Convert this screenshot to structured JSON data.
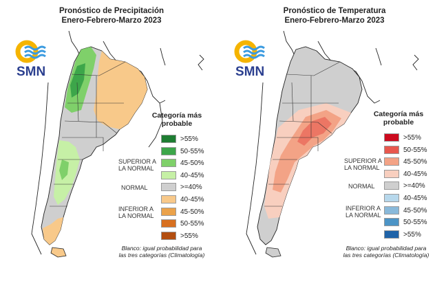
{
  "colors": {
    "precip_superior": [
      "#1e7d32",
      "#3da64a",
      "#7fd06a",
      "#c6f0a6"
    ],
    "precip_inferior": [
      "#f8c98a",
      "#eba24a",
      "#d87020",
      "#b34e10"
    ],
    "temp_superior": [
      "#cc0a1e",
      "#e8584e",
      "#f3a386",
      "#f8cfbf"
    ],
    "temp_inferior": [
      "#b7d8ec",
      "#89b9da",
      "#4c94c6",
      "#1f63a8"
    ],
    "normal": "#cfcfcf"
  },
  "panels": [
    {
      "id": "precipitation",
      "title_line1": "Pronóstico de Precipitación",
      "title_line2": "Enero-Febrero-Marzo 2023",
      "logo_text": "SMN",
      "legend_title_line1": "Categoría más",
      "legend_title_line2": "probable",
      "legend": [
        {
          "label": ">55%",
          "color": "#1e7d32"
        },
        {
          "label": "50-55%",
          "color": "#3da64a"
        },
        {
          "label": "45-50%",
          "color": "#7fd06a"
        },
        {
          "label": "40-45%",
          "color": "#c6f0a6"
        },
        {
          "label": ">=40%",
          "color": "#cfcfcf"
        },
        {
          "label": "40-45%",
          "color": "#f8c98a"
        },
        {
          "label": "45-50%",
          "color": "#eba24a"
        },
        {
          "label": "50-55%",
          "color": "#d87020"
        },
        {
          "label": ">55%",
          "color": "#b34e10"
        }
      ],
      "groups": {
        "superior_line1": "SUPERIOR A",
        "superior_line2": "LA NORMAL",
        "normal": "NORMAL",
        "inferior_line1": "INFERIOR A",
        "inferior_line2": "LA NORMAL"
      },
      "note_line1": "Blanco: igual probabilidad para",
      "note_line2": "las tres categorías (Climatología)"
    },
    {
      "id": "temperature",
      "title_line1": "Pronóstico de Temperatura",
      "title_line2": "Enero-Febrero-Marzo 2023",
      "logo_text": "SMN",
      "legend_title_line1": "Categoría más",
      "legend_title_line2": "probable",
      "legend": [
        {
          "label": ">55%",
          "color": "#cc0a1e"
        },
        {
          "label": "50-55%",
          "color": "#e8584e"
        },
        {
          "label": "45-50%",
          "color": "#f3a386"
        },
        {
          "label": "40-45%",
          "color": "#f8cfbf"
        },
        {
          "label": ">=40%",
          "color": "#cfcfcf"
        },
        {
          "label": "40-45%",
          "color": "#b7d8ec"
        },
        {
          "label": "45-50%",
          "color": "#89b9da"
        },
        {
          "label": "50-55%",
          "color": "#4c94c6"
        },
        {
          "label": ">55%",
          "color": "#1f63a8"
        }
      ],
      "groups": {
        "superior_line1": "SUPERIOR A",
        "superior_line2": "LA NORMAL",
        "normal": "NORMAL",
        "inferior_line1": "INFERIOR A",
        "inferior_line2": "LA NORMAL"
      },
      "note_line1": "Blanco: igual probabilidad para",
      "note_line2": "las tres categorías (Climatología)"
    }
  ]
}
